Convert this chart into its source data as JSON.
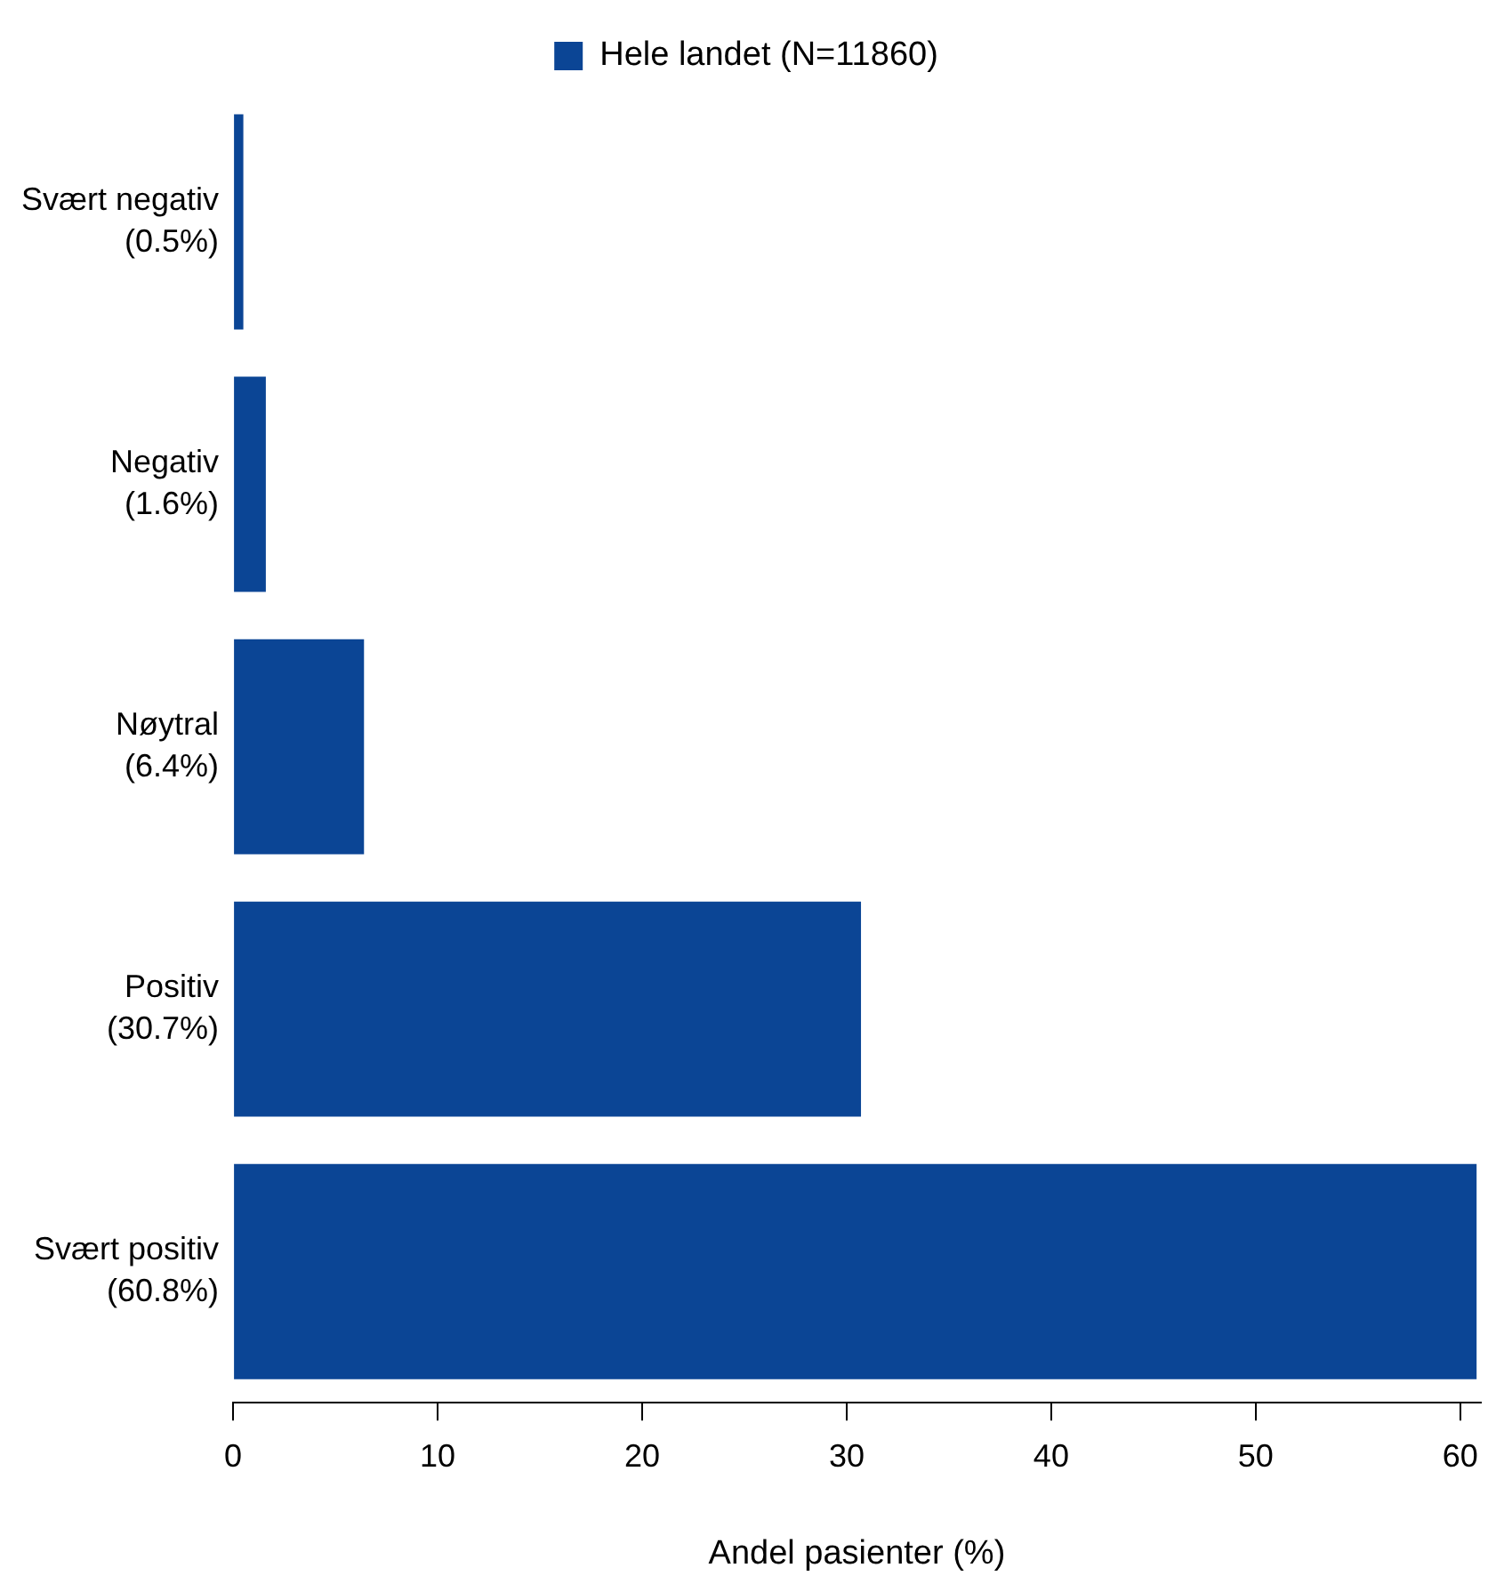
{
  "chart_data": {
    "type": "bar",
    "orientation": "horizontal",
    "categories": [
      "Svært negativ\n(0.5%)",
      "Negativ\n(1.6%)",
      "Nøytral\n(6.4%)",
      "Positiv\n(30.7%)",
      "Svært positiv\n(60.8%)"
    ],
    "series": [
      {
        "name": "Hele landet (N=11860)",
        "color": "#0b4595",
        "values": [
          0.5,
          1.6,
          6.4,
          30.7,
          60.8
        ]
      }
    ],
    "xlim": [
      0,
      61
    ],
    "xticks": [
      0,
      10,
      20,
      30,
      40,
      50,
      60
    ],
    "xlabel": "Andel pasienter (%)",
    "legend": "top",
    "grid": false
  }
}
